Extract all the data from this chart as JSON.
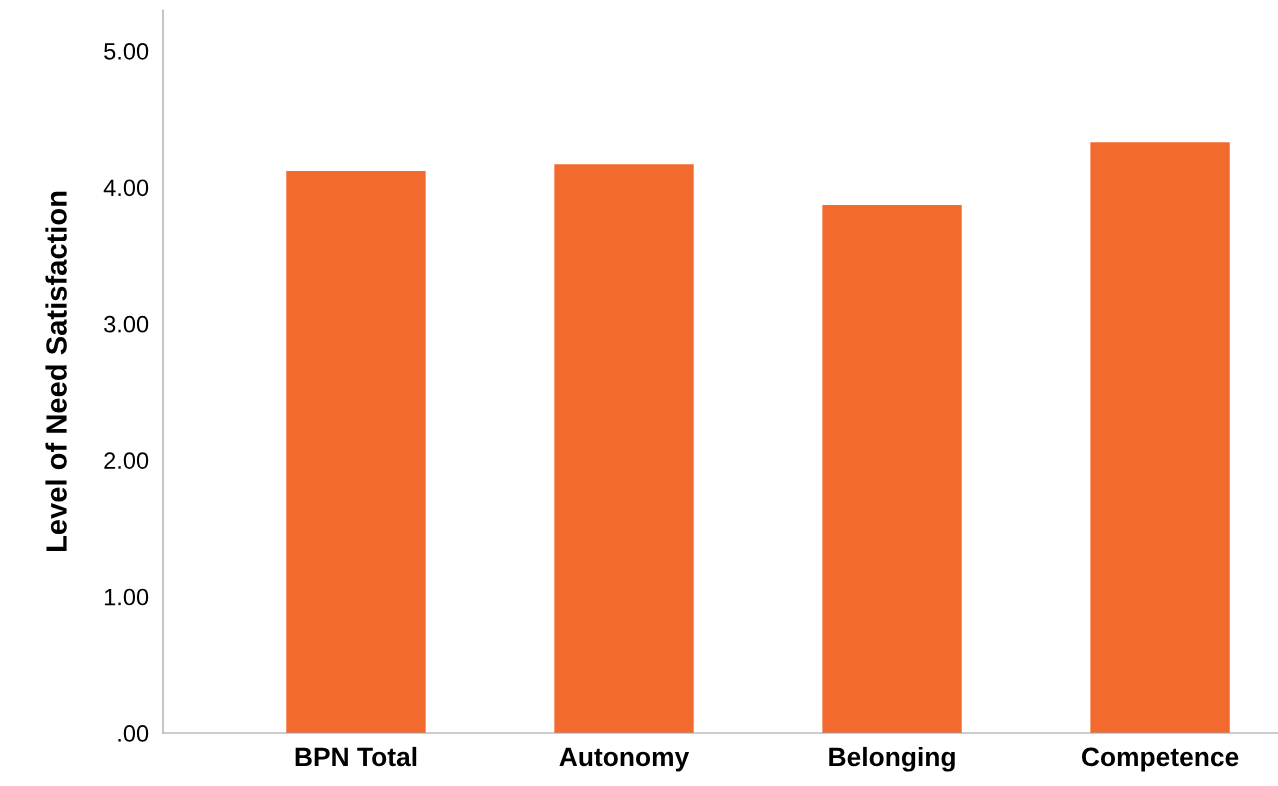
{
  "chart_data": {
    "type": "bar",
    "ylabel": "Level of Need Satisfaction",
    "categories": [
      "BPN Total",
      "Autonomy",
      "Belonging",
      "Competence"
    ],
    "values": [
      4.12,
      4.17,
      3.87,
      4.33
    ],
    "color": "#f26a2e",
    "ylim": [
      0,
      5.3
    ],
    "yticks": [
      {
        "value": 0,
        "label": ".00"
      },
      {
        "value": 1,
        "label": "1.00"
      },
      {
        "value": 2,
        "label": "2.00"
      },
      {
        "value": 3,
        "label": "3.00"
      },
      {
        "value": 4,
        "label": "4.00"
      },
      {
        "value": 5,
        "label": "5.00"
      }
    ],
    "grid": false
  }
}
